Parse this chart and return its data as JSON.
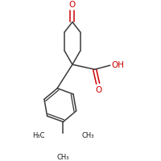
{
  "bond_color": "#3a3a3a",
  "red": "#cc0000",
  "black": "#1a1a1a",
  "bg": "#ffffff",
  "lw": 1.1,
  "figsize": [
    2.0,
    2.0
  ],
  "dpi": 100,
  "xlim": [
    -1.0,
    1.4
  ],
  "ylim": [
    -1.7,
    1.4
  ]
}
